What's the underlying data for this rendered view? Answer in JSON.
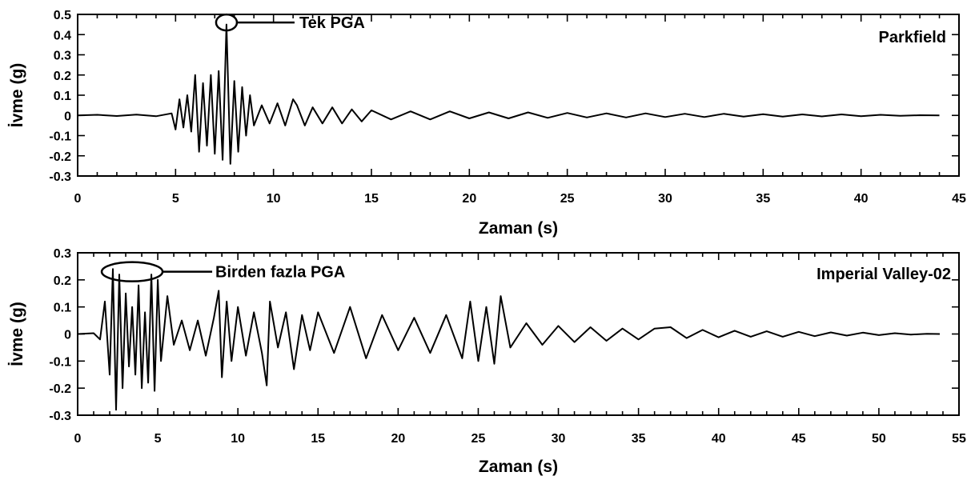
{
  "chart_data": [
    {
      "type": "line",
      "station": "Parkfield",
      "xlabel": "Zaman (s)",
      "ylabel": "İvme (g)",
      "xlim": [
        0,
        45
      ],
      "ylim": [
        -0.3,
        0.5
      ],
      "xticks": [
        "0",
        "5",
        "10",
        "15",
        "20",
        "25",
        "30",
        "35",
        "40",
        "45"
      ],
      "yticks": [
        "-0.3",
        "-0.2",
        "-0.1",
        "0",
        "0.1",
        "0.2",
        "0.3",
        "0.4",
        "0.5"
      ],
      "annotation": {
        "text": "Tek PGA",
        "x": 7.6,
        "y": 0.46
      },
      "series": [
        {
          "x": [
            0,
            1,
            2,
            3,
            4,
            4.8,
            5.0,
            5.2,
            5.4,
            5.6,
            5.8,
            6.0,
            6.2,
            6.4,
            6.6,
            6.8,
            7.0,
            7.2,
            7.4,
            7.6,
            7.8,
            8.0,
            8.2,
            8.4,
            8.6,
            8.8,
            9.0,
            9.4,
            9.8,
            10.2,
            10.6,
            11.0,
            11.2,
            11.6,
            12.0,
            12.5,
            13.0,
            13.5,
            14.0,
            14.5,
            15.0,
            16,
            17,
            18,
            19,
            20,
            21,
            22,
            23,
            24,
            25,
            26,
            27,
            28,
            29,
            30,
            31,
            32,
            33,
            34,
            35,
            36,
            37,
            38,
            39,
            40,
            41,
            42,
            43,
            44
          ],
          "y": [
            0,
            0.003,
            -0.003,
            0.004,
            -0.004,
            0.01,
            -0.07,
            0.08,
            -0.06,
            0.1,
            -0.08,
            0.2,
            -0.18,
            0.16,
            -0.15,
            0.2,
            -0.19,
            0.22,
            -0.22,
            0.45,
            -0.24,
            0.17,
            -0.18,
            0.14,
            -0.1,
            0.1,
            -0.05,
            0.05,
            -0.04,
            0.06,
            -0.05,
            0.08,
            0.05,
            -0.05,
            0.04,
            -0.04,
            0.04,
            -0.04,
            0.03,
            -0.03,
            0.025,
            -0.02,
            0.02,
            -0.02,
            0.02,
            -0.015,
            0.015,
            -0.015,
            0.015,
            -0.012,
            0.012,
            -0.01,
            0.01,
            -0.01,
            0.01,
            -0.008,
            0.008,
            -0.008,
            0.008,
            -0.006,
            0.006,
            -0.006,
            0.005,
            -0.005,
            0.005,
            -0.004,
            0.003,
            -0.002,
            0.001,
            0
          ]
        }
      ]
    },
    {
      "type": "line",
      "station": "Imperial Valley-02",
      "xlabel": "Zaman (s)",
      "ylabel": "İvme (g)",
      "xlim": [
        0,
        55
      ],
      "ylim": [
        -0.3,
        0.3
      ],
      "xticks": [
        "0",
        "5",
        "10",
        "15",
        "20",
        "25",
        "30",
        "35",
        "40",
        "45",
        "50",
        "55"
      ],
      "yticks": [
        "-0.3",
        "-0.2",
        "-0.1",
        "0",
        "0.1",
        "0.2",
        "0.3"
      ],
      "annotation": {
        "text": "Birden fazla PGA",
        "x": 3.4,
        "y": 0.23
      },
      "series": [
        {
          "x": [
            0,
            1.0,
            1.4,
            1.7,
            2.0,
            2.2,
            2.4,
            2.6,
            2.8,
            3.0,
            3.2,
            3.4,
            3.6,
            3.8,
            4.0,
            4.2,
            4.4,
            4.6,
            4.8,
            5.0,
            5.2,
            5.6,
            6.0,
            6.5,
            7.0,
            7.5,
            8.0,
            8.5,
            8.8,
            9.0,
            9.3,
            9.6,
            10.0,
            10.5,
            11.0,
            11.5,
            11.8,
            12.0,
            12.5,
            13.0,
            13.5,
            14.0,
            14.5,
            15,
            16,
            17,
            18,
            19,
            20,
            21,
            22,
            23,
            24,
            24.5,
            25,
            25.5,
            26,
            26.4,
            27,
            28,
            29,
            30,
            31,
            32,
            33,
            34,
            35,
            36,
            37,
            38,
            39,
            40,
            41,
            42,
            43,
            44,
            45,
            46,
            47,
            48,
            49,
            50,
            51,
            52,
            53,
            53.8
          ],
          "y": [
            0,
            0.003,
            -0.02,
            0.12,
            -0.15,
            0.24,
            -0.28,
            0.22,
            -0.2,
            0.15,
            -0.12,
            0.1,
            -0.15,
            0.18,
            -0.2,
            0.08,
            -0.18,
            0.22,
            -0.21,
            0.2,
            -0.1,
            0.14,
            -0.04,
            0.05,
            -0.06,
            0.05,
            -0.08,
            0.06,
            0.16,
            -0.16,
            0.12,
            -0.1,
            0.1,
            -0.08,
            0.08,
            -0.07,
            -0.19,
            0.12,
            -0.05,
            0.08,
            -0.13,
            0.07,
            -0.06,
            0.08,
            -0.07,
            0.1,
            -0.09,
            0.07,
            -0.06,
            0.06,
            -0.07,
            0.07,
            -0.09,
            0.12,
            -0.1,
            0.1,
            -0.11,
            0.14,
            -0.05,
            0.04,
            -0.04,
            0.03,
            -0.03,
            0.025,
            -0.025,
            0.02,
            -0.02,
            0.02,
            0.025,
            -0.015,
            0.015,
            -0.012,
            0.012,
            -0.01,
            0.01,
            -0.01,
            0.008,
            -0.008,
            0.006,
            -0.006,
            0.005,
            -0.004,
            0.003,
            -0.002,
            0.001,
            0
          ]
        }
      ]
    }
  ]
}
